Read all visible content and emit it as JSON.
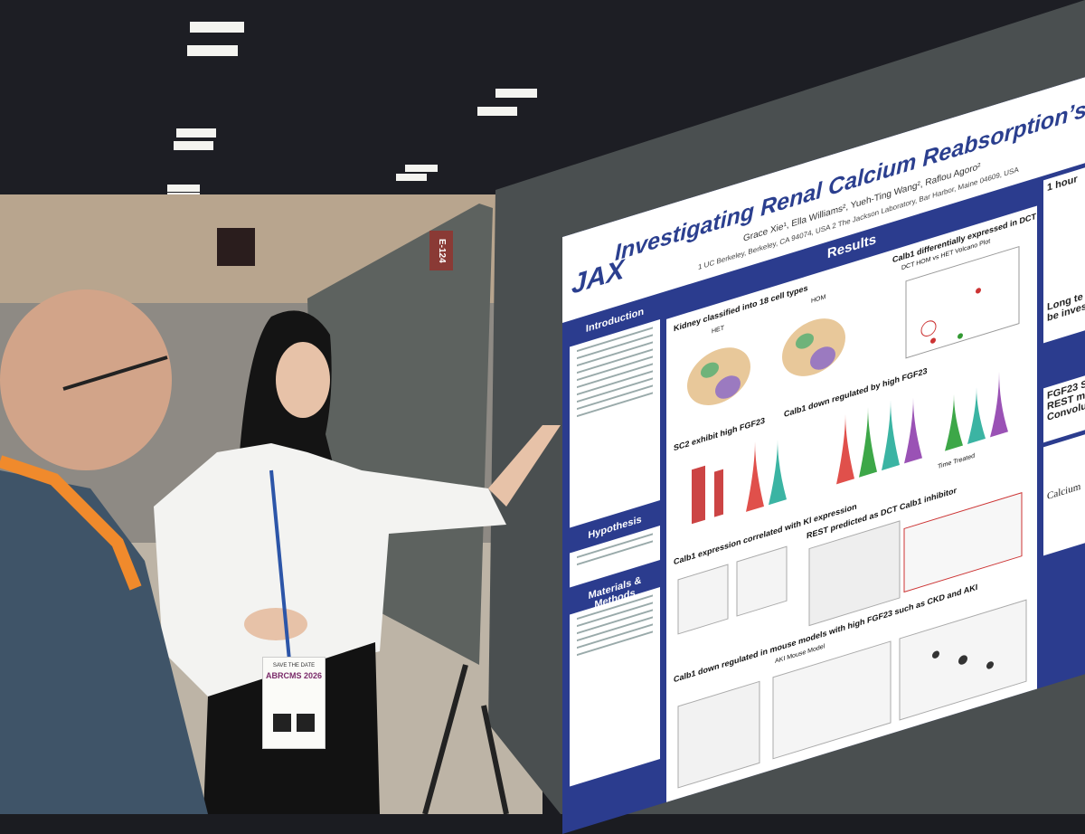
{
  "sign": "E-124",
  "poster": {
    "logo": "JAX",
    "title": "Investigating Renal Calcium Reabsorption’s Effect on Sickle Ce",
    "authors": "Grace Xie¹, Ella Williams², Yueh-Ting Wang², Raflou Agoro²",
    "affiliations": "1 UC Berkeley, Berkeley, CA 94074, USA   2 The Jackson Laboratory, Bar Harbor, Maine 04609, USA",
    "sections": [
      "Introduction",
      "Hypothesis",
      "Materials & Methods"
    ],
    "results_heading": "Results",
    "panels": [
      "Kidney classified into 18 cell types",
      "Calb1 differentially expressed in DCT",
      "DCT HOM vs HET Volcano Plot",
      "SC2 exhibit high FGF23",
      "Calb1 down regulated by high FGF23",
      "Calb1 expression correlated with Kl expression",
      "REST predicted as DCT Calb1 inhibitor",
      "Calb1 down regulated in mouse models with high FGF23 such as CKD and AKI"
    ],
    "labels": [
      "HET",
      "HOM",
      "Time Treated",
      "AKI Mouse Model"
    ],
    "right_column": [
      "1 hour",
      "Long te",
      "be inves",
      "FGF23 S",
      "REST m",
      "Convolu",
      "Calcium"
    ]
  },
  "badge": {
    "top": "SAVE THE DATE",
    "title": "ABRCMS 2026"
  }
}
